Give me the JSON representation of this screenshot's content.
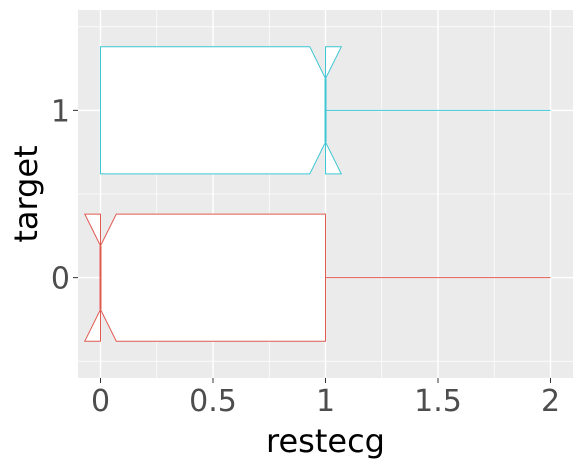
{
  "chart_data": {
    "type": "boxplot",
    "orientation": "horizontal",
    "notched": true,
    "xlabel": "restecg",
    "ylabel": "target",
    "xlim": [
      -0.1,
      2.1
    ],
    "ylim": [
      -0.6,
      1.6
    ],
    "x_ticks": [
      0,
      0.5,
      1,
      1.5,
      2
    ],
    "x_tick_labels": [
      "0",
      "0.5",
      "1",
      "1.5",
      "2"
    ],
    "y_ticks": [
      0,
      1
    ],
    "y_tick_labels": [
      "0",
      "1"
    ],
    "grid": true,
    "panel_color": "#ebebeb",
    "grid_color": "#ffffff",
    "legend": "none",
    "boxes": [
      {
        "category": "0",
        "y": 0,
        "min": 0,
        "q1": 0,
        "median": 0,
        "q3": 1,
        "max": 2,
        "notch_low": -0.07,
        "notch_high": 0.07,
        "color": "#e05a52"
      },
      {
        "category": "1",
        "y": 1,
        "min": 0,
        "q1": 0,
        "median": 1,
        "q3": 1,
        "max": 2,
        "notch_low": 0.93,
        "notch_high": 1.07,
        "color": "#3ec6d4"
      }
    ]
  }
}
